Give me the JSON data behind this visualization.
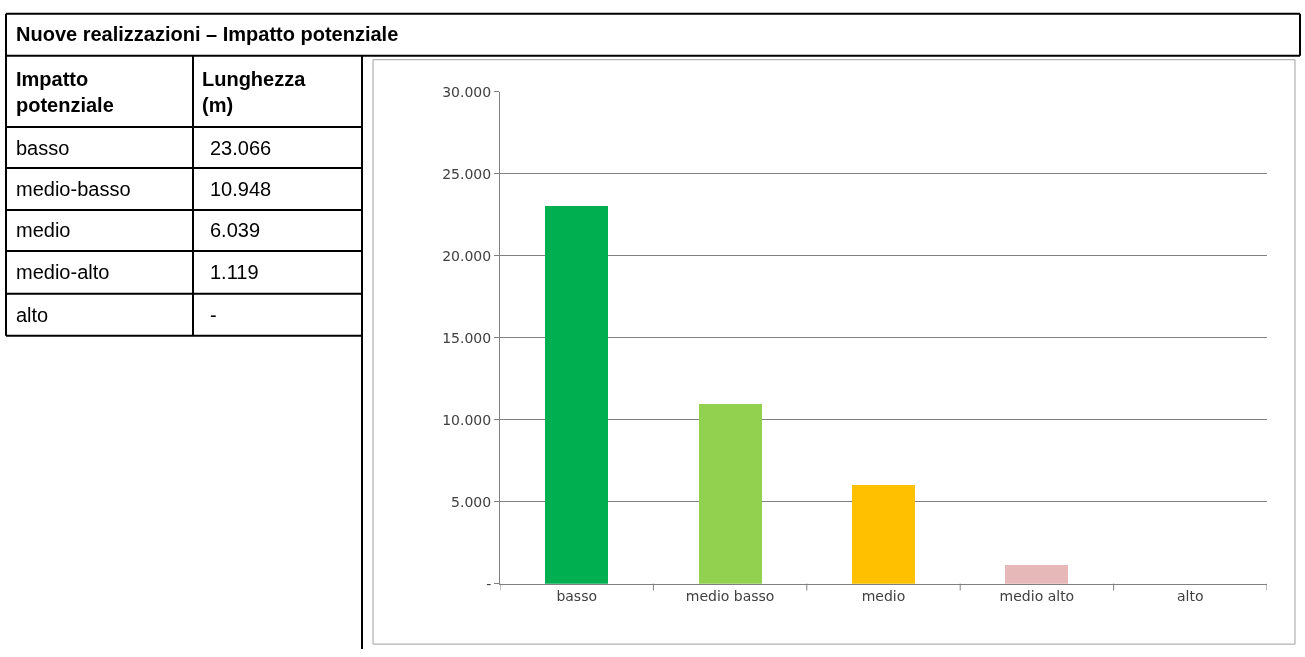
{
  "chart_data": {
    "type": "bar",
    "title": "Nuove realizzazioni – Impatto potenziale",
    "categories": [
      "basso",
      "medio basso",
      "medio",
      "medio alto",
      "alto"
    ],
    "values": [
      23066,
      10948,
      6039,
      1119,
      null
    ],
    "colors": [
      "#00b050",
      "#92d050",
      "#ffc000",
      "#e6b9b8",
      null
    ],
    "annotations": [
      "Impatto potenziale",
      "Lunghezza (m)",
      "basso",
      "23.066",
      "medio-basso",
      "10.948",
      "medio",
      "6.039",
      "medio-alto",
      "1.119",
      "alto",
      "-"
    ],
    "ylim": [
      0,
      30000
    ],
    "yticks": [
      {
        "value": 0,
        "label": "-"
      },
      {
        "value": 5000,
        "label": "5.000"
      },
      {
        "value": 10000,
        "label": "10.000"
      },
      {
        "value": 15000,
        "label": "15.000"
      },
      {
        "value": 20000,
        "label": "20.000"
      },
      {
        "value": 25000,
        "label": "25.000"
      },
      {
        "value": 30000,
        "label": "30.000"
      }
    ],
    "grid": "y",
    "legend": false
  }
}
